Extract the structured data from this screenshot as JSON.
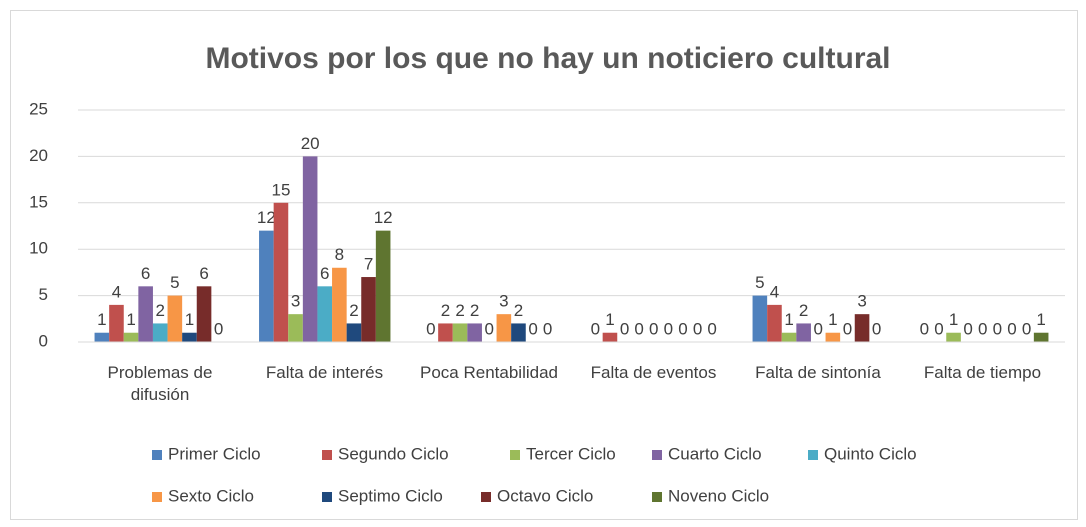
{
  "chart_data": {
    "type": "bar",
    "title": "Motivos por los que no hay un noticiero cultural",
    "categories": [
      "Problemas de difusión",
      "Falta de interés",
      "Poca Rentabilidad",
      "Falta de eventos",
      "Falta de sintonía",
      "Falta de tiempo"
    ],
    "series": [
      {
        "name": "Primer Ciclo",
        "color": "#4f81bd",
        "values": [
          1,
          12,
          0,
          0,
          5,
          0
        ]
      },
      {
        "name": "Segundo Ciclo",
        "color": "#c0504d",
        "values": [
          4,
          15,
          2,
          1,
          4,
          0
        ]
      },
      {
        "name": "Tercer Ciclo",
        "color": "#9bbb59",
        "values": [
          1,
          3,
          2,
          0,
          1,
          1
        ]
      },
      {
        "name": "Cuarto Ciclo",
        "color": "#8064a2",
        "values": [
          6,
          20,
          2,
          0,
          2,
          0
        ]
      },
      {
        "name": "Quinto Ciclo",
        "color": "#4bacc6",
        "values": [
          2,
          6,
          0,
          0,
          0,
          0
        ]
      },
      {
        "name": "Sexto Ciclo",
        "color": "#f79646",
        "values": [
          5,
          8,
          3,
          0,
          1,
          0
        ]
      },
      {
        "name": "Septimo Ciclo",
        "color": "#1f497d",
        "values": [
          1,
          2,
          2,
          0,
          0,
          0
        ]
      },
      {
        "name": "Octavo Ciclo",
        "color": "#772c2a",
        "values": [
          6,
          7,
          0,
          0,
          3,
          0
        ]
      },
      {
        "name": "Noveno Ciclo",
        "color": "#5f7530",
        "values": [
          0,
          12,
          0,
          0,
          0,
          1
        ]
      }
    ],
    "ylim": [
      0,
      25
    ],
    "yticks": [
      0,
      5,
      10,
      15,
      20,
      25
    ],
    "grid": true,
    "legend": "bottom"
  }
}
